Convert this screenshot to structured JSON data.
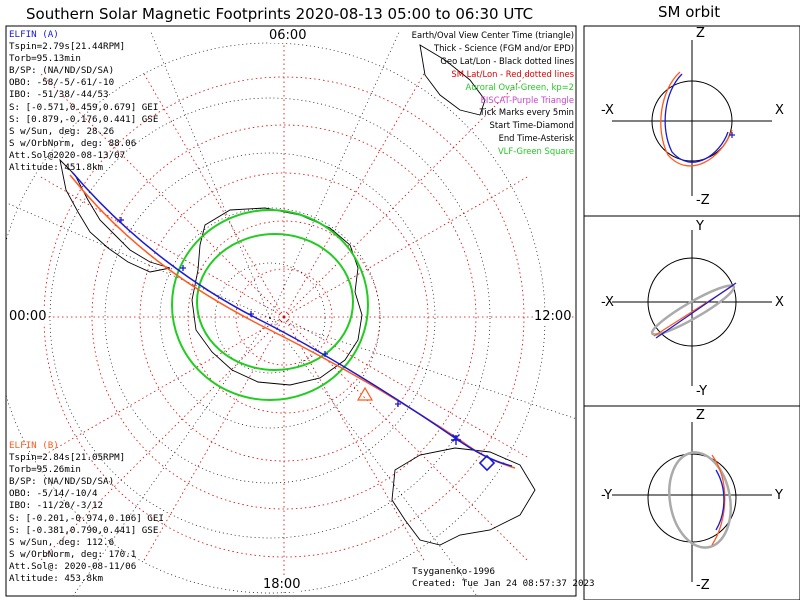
{
  "title": "Southern Solar Magnetic Footprints 2020-08-13 05:00 to 06:30 UTC",
  "sm_orbit_title": "SM orbit",
  "hour_labels": {
    "top": "06:00",
    "left": "00:00",
    "right": "12:00",
    "bottom": "18:00"
  },
  "elfin_a": {
    "name": "ELFIN (A)",
    "color": "#1a1ad6",
    "lines": [
      "Tspin=2.79s[21.44RPM]",
      "Torb=95.13min",
      "B/SP: (NA/ND/SD/SA)",
      "OBO: -58/-5/-61/-10",
      "IBO: -51/38/-44/53",
      "S: [-0.571,0.459,0.679] GEI",
      "S: [0.879,-0.176,0.441] GSE",
      "S w/Sun, deg: 28.26",
      "S w/OrbNorm, deg: 88.06",
      "Att.Sol@2020-08-13/07",
      "Altitude: 451.8km"
    ]
  },
  "elfin_b": {
    "name": "ELFIN (B)",
    "color": "#ff5a1f",
    "lines": [
      "Tspin=2.84s[21.05RPM]",
      "Torb=95.26min",
      "B/SP: (NA/ND/SD/SA)",
      "OBO: -5/14/-10/4",
      "IBO: -11/20/-3/12",
      "S: [-0.201,-0.974,0.106] GEI",
      "S: [-0.381,0.790,0.441] GSE",
      "S w/Sun, deg: 112.6",
      "S w/OrbNorm, deg: 170.1",
      "Att.Sol@: 2020-08-11/06",
      "Altitude: 453.8km"
    ]
  },
  "legend": [
    {
      "text": "Earth/Oval View Center Time (triangle)",
      "color": "#000000"
    },
    {
      "text": "Thick - Science (FGM and/or EPD)",
      "color": "#000000"
    },
    {
      "text": "Geo Lat/Lon - Black dotted lines",
      "color": "#000000"
    },
    {
      "text": "SM Lat/Lon - Red dotted lines",
      "color": "#e00000"
    },
    {
      "text": "Auroral Oval-Green, kp=2",
      "color": "#22cc22"
    },
    {
      "text": "EISCAT-Purple Triangle",
      "color": "#cc44cc"
    },
    {
      "text": "Tick Marks every 5min",
      "color": "#000000"
    },
    {
      "text": "Start Time-Diamond",
      "color": "#000000"
    },
    {
      "text": "End Time-Asterisk",
      "color": "#000000"
    },
    {
      "text": "VLF-Green Square",
      "color": "#22cc22"
    }
  ],
  "credits": {
    "model": "Tsyganenko-1996",
    "created": "Created: Tue Jan 24 08:57:37 2023"
  },
  "panels": [
    {
      "top": "Z",
      "bottom": "-Z",
      "left": "-X",
      "right": "X"
    },
    {
      "top": "Y",
      "bottom": "-Y",
      "left": "-X",
      "right": "X"
    },
    {
      "top": "Z",
      "bottom": "-Z",
      "left": "-Y",
      "right": "Y"
    }
  ]
}
